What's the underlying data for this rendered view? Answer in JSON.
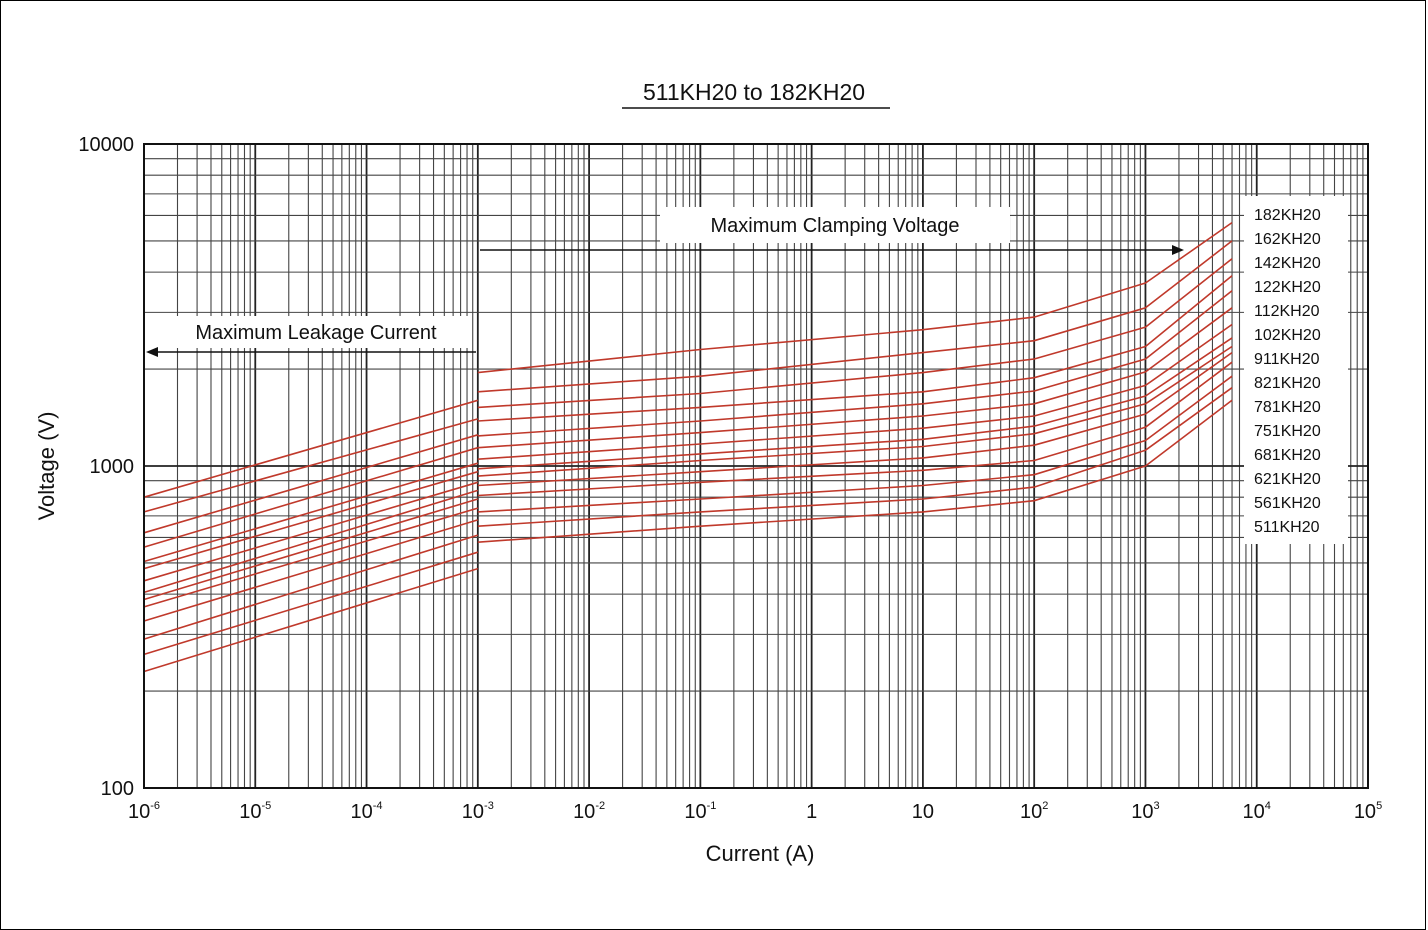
{
  "chart_data": {
    "type": "line",
    "title": "511KH20 to 182KH20",
    "xlabel": "Current (A)",
    "ylabel": "Voltage (V)",
    "x_scale": "log",
    "y_scale": "log",
    "xlim": [
      1e-06,
      100000
    ],
    "ylim": [
      100,
      10000
    ],
    "grid": true,
    "legend_position": "right",
    "x_ticks": [
      {
        "base": "10",
        "exp": "-6"
      },
      {
        "base": "10",
        "exp": "-5"
      },
      {
        "base": "10",
        "exp": "-4"
      },
      {
        "base": "10",
        "exp": "-3"
      },
      {
        "base": "10",
        "exp": "-2"
      },
      {
        "base": "10",
        "exp": "-1"
      },
      {
        "base": "1",
        "exp": ""
      },
      {
        "base": "10",
        "exp": ""
      },
      {
        "base": "10",
        "exp": "2"
      },
      {
        "base": "10",
        "exp": "3"
      },
      {
        "base": "10",
        "exp": "4"
      },
      {
        "base": "10",
        "exp": "5"
      }
    ],
    "y_ticks": [
      "100",
      "1000",
      "10000"
    ],
    "annotations": {
      "clamping": "Maximum Clamping Voltage",
      "leakage": "Maximum Leakage Current"
    },
    "line_color": "#c0392b",
    "series_leakage": [
      {
        "name": "182KH20",
        "x": [
          1e-06,
          0.001
        ],
        "y": [
          800,
          1600
        ]
      },
      {
        "name": "162KH20",
        "x": [
          1e-06,
          0.001
        ],
        "y": [
          720,
          1400
        ]
      },
      {
        "name": "142KH20",
        "x": [
          1e-06,
          0.001
        ],
        "y": [
          620,
          1250
        ]
      },
      {
        "name": "122KH20",
        "x": [
          1e-06,
          0.001
        ],
        "y": [
          560,
          1140
        ]
      },
      {
        "name": "112KH20",
        "x": [
          1e-06,
          0.001
        ],
        "y": [
          505,
          1020
        ]
      },
      {
        "name": "102KH20",
        "x": [
          1e-06,
          0.001
        ],
        "y": [
          480,
          960
        ]
      },
      {
        "name": "911KH20",
        "x": [
          1e-06,
          0.001
        ],
        "y": [
          440,
          890
        ]
      },
      {
        "name": "821KH20",
        "x": [
          1e-06,
          0.001
        ],
        "y": [
          405,
          840
        ]
      },
      {
        "name": "781KH20",
        "x": [
          1e-06,
          0.001
        ],
        "y": [
          385,
          790
        ]
      },
      {
        "name": "751KH20",
        "x": [
          1e-06,
          0.001
        ],
        "y": [
          365,
          740
        ]
      },
      {
        "name": "681KH20",
        "x": [
          1e-06,
          0.001
        ],
        "y": [
          330,
          680
        ]
      },
      {
        "name": "621KH20",
        "x": [
          1e-06,
          0.001
        ],
        "y": [
          290,
          610
        ]
      },
      {
        "name": "561KH20",
        "x": [
          1e-06,
          0.001
        ],
        "y": [
          260,
          540
        ]
      },
      {
        "name": "511KH20",
        "x": [
          1e-06,
          0.001
        ],
        "y": [
          230,
          480
        ]
      }
    ],
    "series_clamping": [
      {
        "name": "182KH20",
        "x": [
          0.001,
          0.1,
          10,
          100,
          1000,
          6000
        ],
        "y": [
          1950,
          2300,
          2650,
          2900,
          3700,
          5700
        ]
      },
      {
        "name": "162KH20",
        "x": [
          0.001,
          0.1,
          10,
          100,
          1000,
          6000
        ],
        "y": [
          1700,
          1900,
          2250,
          2450,
          3100,
          5000
        ]
      },
      {
        "name": "142KH20",
        "x": [
          0.001,
          0.1,
          10,
          100,
          1000,
          6000
        ],
        "y": [
          1520,
          1680,
          1950,
          2150,
          2700,
          4400
        ]
      },
      {
        "name": "122KH20",
        "x": [
          0.001,
          0.1,
          10,
          100,
          1000,
          6000
        ],
        "y": [
          1380,
          1520,
          1700,
          1880,
          2350,
          3900
        ]
      },
      {
        "name": "112KH20",
        "x": [
          0.001,
          0.1,
          10,
          100,
          1000,
          6000
        ],
        "y": [
          1240,
          1380,
          1560,
          1710,
          2150,
          3500
        ]
      },
      {
        "name": "102KH20",
        "x": [
          0.001,
          0.1,
          10,
          100,
          1000,
          6000
        ],
        "y": [
          1140,
          1270,
          1430,
          1560,
          1960,
          3100
        ]
      },
      {
        "name": "911KH20",
        "x": [
          0.001,
          0.1,
          10,
          100,
          1000,
          6000
        ],
        "y": [
          1050,
          1170,
          1310,
          1430,
          1780,
          2750
        ]
      },
      {
        "name": "821KH20",
        "x": [
          0.001,
          0.1,
          10,
          100,
          1000,
          6000
        ],
        "y": [
          980,
          1090,
          1210,
          1330,
          1650,
          2500
        ]
      },
      {
        "name": "781KH20",
        "x": [
          0.001,
          0.1,
          10,
          100,
          1000,
          6000
        ],
        "y": [
          930,
          1040,
          1150,
          1260,
          1560,
          2350
        ]
      },
      {
        "name": "751KH20",
        "x": [
          0.001,
          0.1,
          10,
          100,
          1000,
          6000
        ],
        "y": [
          870,
          960,
          1060,
          1160,
          1450,
          2250
        ]
      },
      {
        "name": "681KH20",
        "x": [
          0.001,
          0.1,
          10,
          100,
          1000,
          6000
        ],
        "y": [
          810,
          890,
          970,
          1040,
          1320,
          2100
        ]
      },
      {
        "name": "621KH20",
        "x": [
          0.001,
          0.1,
          10,
          100,
          1000,
          6000
        ],
        "y": [
          720,
          790,
          870,
          940,
          1200,
          1900
        ]
      },
      {
        "name": "561KH20",
        "x": [
          0.001,
          0.1,
          10,
          100,
          1000,
          6000
        ],
        "y": [
          650,
          720,
          790,
          860,
          1120,
          1750
        ]
      },
      {
        "name": "511KH20",
        "x": [
          0.001,
          0.1,
          10,
          100,
          1000,
          6000
        ],
        "y": [
          580,
          650,
          720,
          780,
          1000,
          1600
        ]
      }
    ]
  }
}
